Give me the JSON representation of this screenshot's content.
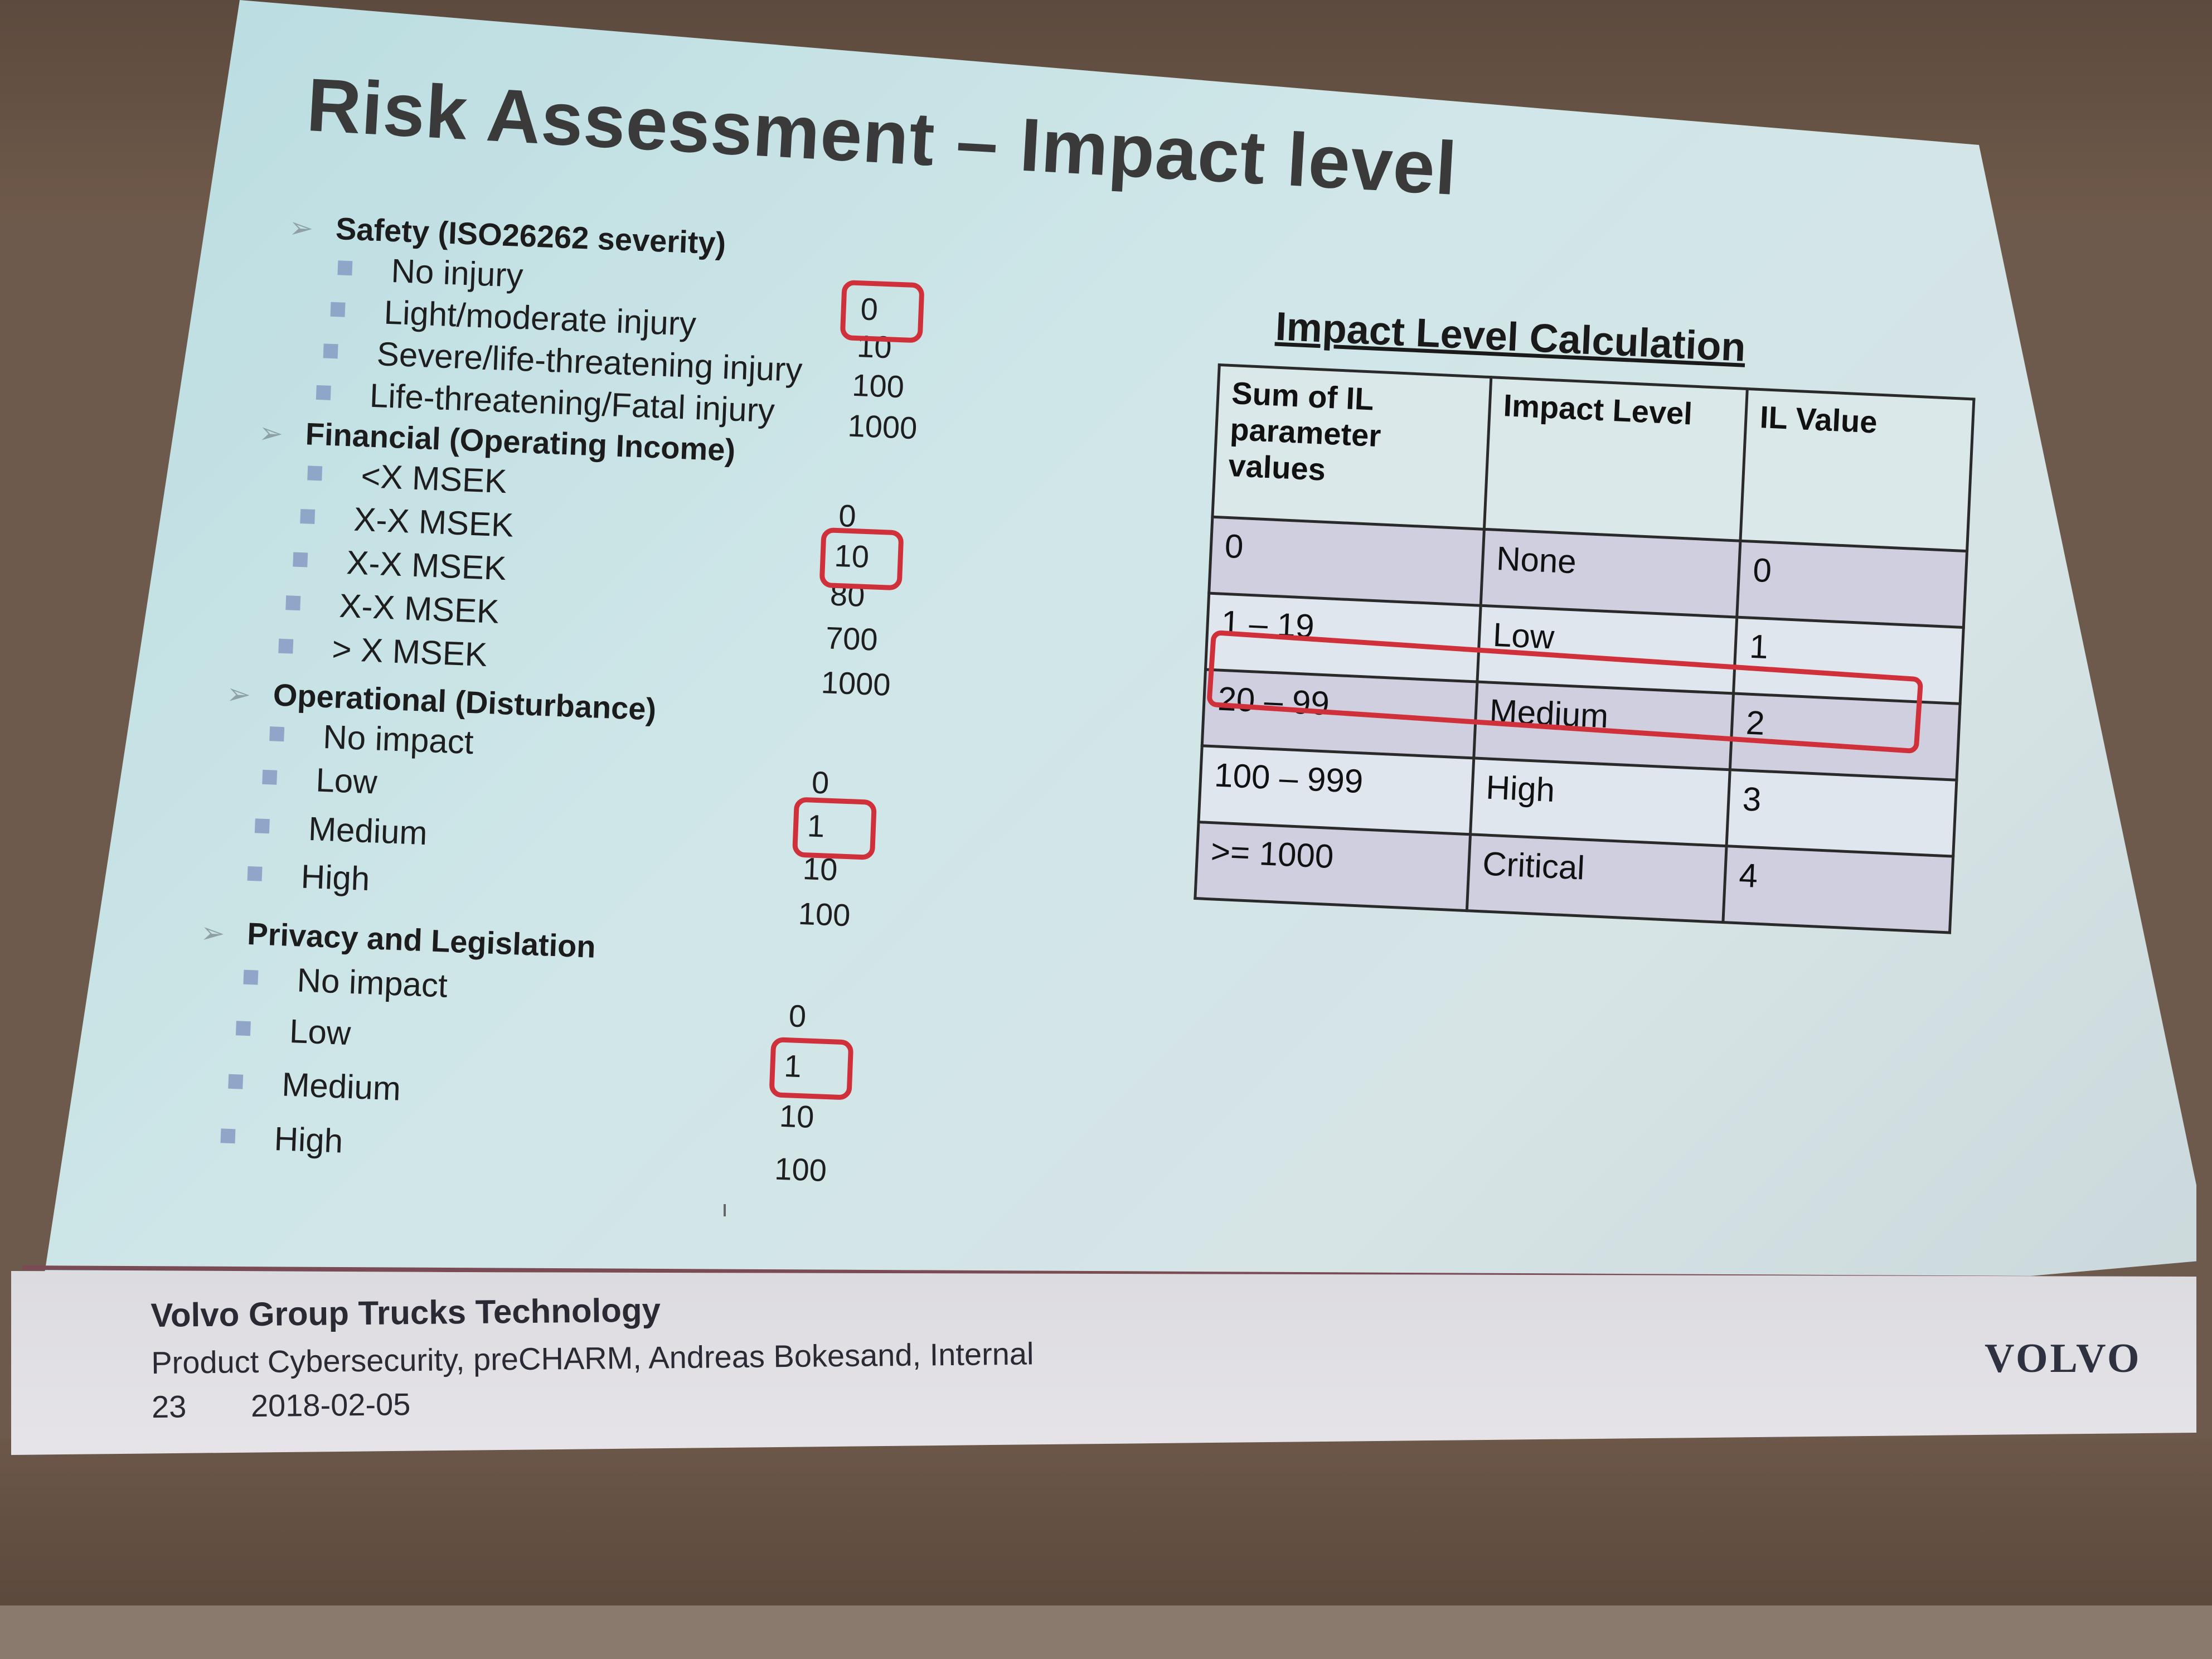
{
  "slide": {
    "title": "Risk Assessment – Impact level",
    "categories": [
      {
        "label": "Safety (ISO26262 severity)",
        "items": [
          {
            "label": "No injury",
            "value": "0"
          },
          {
            "label": "Light/moderate  injury",
            "value": "10"
          },
          {
            "label": "Severe/life-threatening  injury",
            "value": "100"
          },
          {
            "label": "Life-threatening/Fatal  injury",
            "value": "1000"
          }
        ]
      },
      {
        "label": "Financial  (Operating Income)",
        "items": [
          {
            "label": "<X MSEK",
            "value": "0"
          },
          {
            "label": "X-X MSEK",
            "value": "10"
          },
          {
            "label": "X-X MSEK",
            "value": "80"
          },
          {
            "label": "X-X MSEK",
            "value": "700"
          },
          {
            "label": "> X MSEK",
            "value": "1000"
          }
        ]
      },
      {
        "label": "Operational  (Disturbance)",
        "items": [
          {
            "label": "No impact",
            "value": "0"
          },
          {
            "label": "Low",
            "value": "1"
          },
          {
            "label": "Medium",
            "value": "10"
          },
          {
            "label": "High",
            "value": "100"
          }
        ]
      },
      {
        "label": "Privacy  and Legislation",
        "items": [
          {
            "label": "No impact",
            "value": "0"
          },
          {
            "label": "Low",
            "value": "1"
          },
          {
            "label": "Medium",
            "value": "10"
          },
          {
            "label": "High",
            "value": "100"
          }
        ]
      }
    ],
    "safety_highlight": "0",
    "table": {
      "title": "Impact Level Calculation",
      "headers": [
        "Sum of IL parameter values",
        "Impact Level",
        "IL Value"
      ],
      "rows": [
        [
          "0",
          "None",
          "0"
        ],
        [
          "1 – 19",
          "Low",
          "1"
        ],
        [
          "20 – 99",
          "Medium",
          "2"
        ],
        [
          "100 – 999",
          "High",
          "3"
        ],
        [
          ">= 1000",
          "Critical",
          "4"
        ]
      ]
    },
    "footer": {
      "org": "Volvo Group Trucks Technology",
      "subtitle": "Product Cybersecurity, preCHARM,  Andreas Bokesand, Internal",
      "page": "23",
      "date": "2018-02-05",
      "logo": "VOLVO"
    },
    "colors": {
      "highlight": "#d0303a",
      "bullet": "#8fa6c8"
    }
  }
}
